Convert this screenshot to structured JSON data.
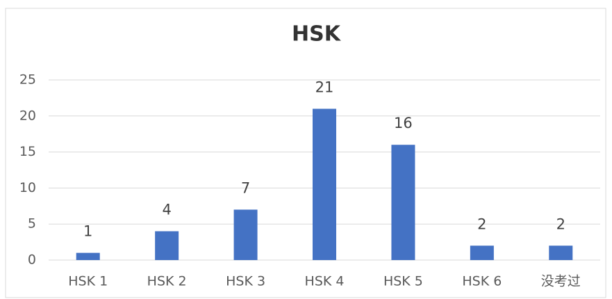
{
  "chart_data": {
    "type": "bar",
    "title": "HSK",
    "categories": [
      "HSK 1",
      "HSK 2",
      "HSK 3",
      "HSK 4",
      "HSK 5",
      "HSK 6",
      "没考过"
    ],
    "values": [
      1,
      4,
      7,
      21,
      16,
      2,
      2
    ],
    "color": "#4472c4",
    "ylim": [
      0,
      25
    ],
    "yticks": [
      0,
      5,
      10,
      15,
      20,
      25
    ],
    "grid": true
  }
}
